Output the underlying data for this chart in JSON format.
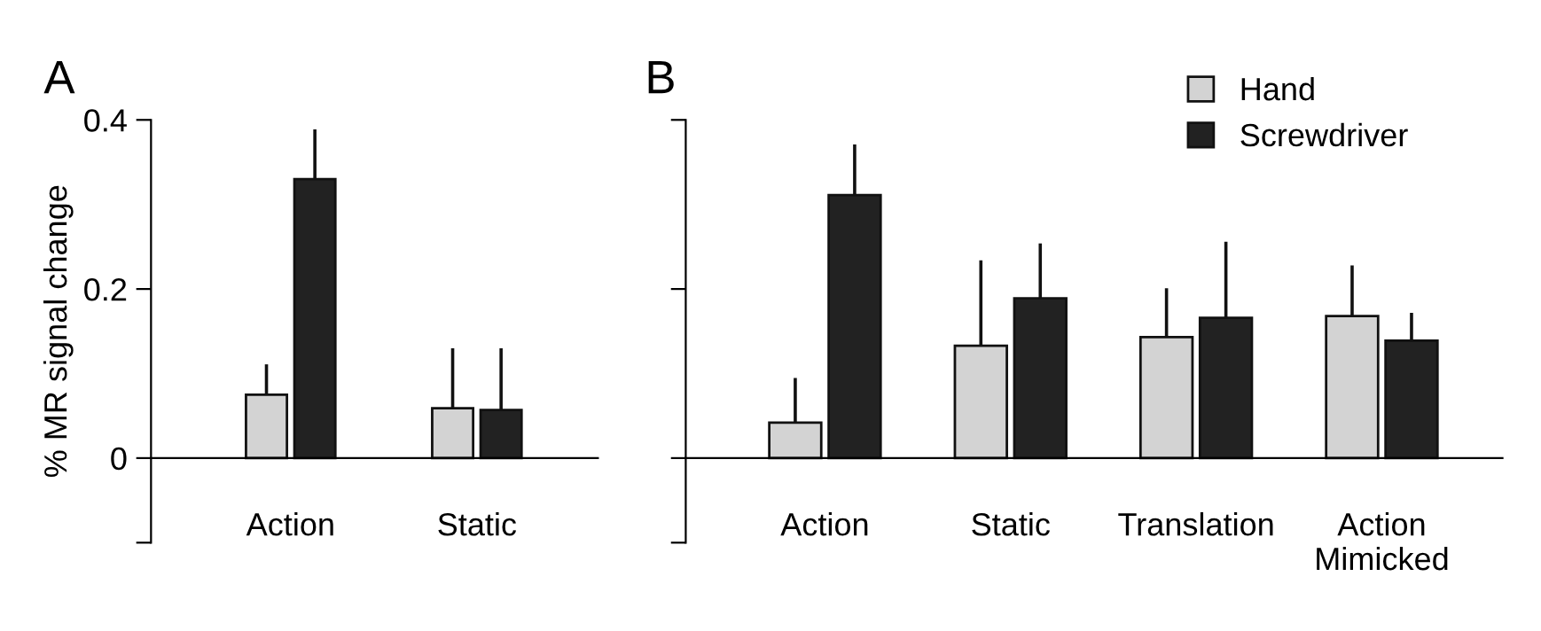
{
  "chart_data": [
    {
      "type": "bar",
      "title": "A",
      "ylabel": "% MR signal change",
      "categories": [
        "Action",
        "Static"
      ],
      "ylim": [
        -0.1,
        0.4
      ],
      "yticks": [
        {
          "value": -0.1,
          "label": null
        },
        0,
        0.2,
        0.4
      ],
      "grid": false,
      "legend": false,
      "series": [
        {
          "color": "#d3d3d3",
          "values": [
            0.075,
            0.059
          ],
          "errors": [
            [
              0.075,
              0.109
            ],
            [
              0.059,
              0.128
            ]
          ]
        },
        {
          "color": "#222222",
          "values": [
            0.33,
            0.057
          ],
          "errors": [
            [
              0.33,
              0.387
            ],
            [
              0.057,
              0.128
            ]
          ]
        }
      ]
    },
    {
      "type": "bar",
      "title": "B",
      "categories": [
        "Action",
        "Static",
        "Translation",
        "Action\nMimicked"
      ],
      "ylim": [
        -0.1,
        0.4
      ],
      "yticks": [
        {
          "value": -0.1,
          "label": null
        },
        0,
        0.2,
        0.4
      ],
      "tick_labels": "x",
      "grid": false,
      "legend": "top right",
      "series": [
        {
          "name": "Hand",
          "color": "#d3d3d3",
          "values": [
            0.042,
            0.133,
            0.143,
            0.168
          ],
          "errors": [
            [
              0.042,
              0.093
            ],
            [
              0.133,
              0.232
            ],
            [
              0.143,
              0.199
            ],
            [
              0.168,
              0.226
            ]
          ]
        },
        {
          "name": "Screwdriver",
          "color": "#222222",
          "values": [
            0.311,
            0.189,
            0.166,
            0.139
          ],
          "errors": [
            [
              0.311,
              0.369
            ],
            [
              0.189,
              0.252
            ],
            [
              0.166,
              0.254
            ],
            [
              0.139,
              0.17
            ]
          ]
        }
      ]
    }
  ]
}
